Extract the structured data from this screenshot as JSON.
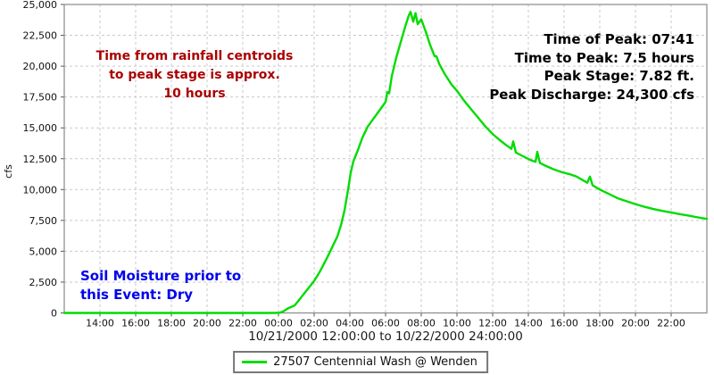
{
  "chart_data": {
    "type": "line",
    "title": "",
    "xlabel": "10/21/2000 12:00:00 to 10/22/2000 24:00:00",
    "ylabel": "cfs",
    "ylim": [
      0,
      25000
    ],
    "y_tick_step": 2500,
    "x_hours_range": [
      0,
      36
    ],
    "x_tick_start_hour": 2,
    "x_tick_step_hours": 2,
    "x_tick_labels": [
      "14:00",
      "16:00",
      "18:00",
      "20:00",
      "22:00",
      "00:00",
      "02:00",
      "04:00",
      "06:00",
      "08:00",
      "10:00",
      "12:00",
      "14:00",
      "16:00",
      "18:00",
      "20:00",
      "22:00"
    ],
    "grid": true,
    "legend_position": "bottom",
    "colors": {
      "grid": "#c9c9c9",
      "axis_border": "#888888",
      "tick": "#555555",
      "tick_label": "#111111"
    },
    "series": [
      {
        "name": "27507 Centennial Wash @ Wenden",
        "color": "#00dc00",
        "points_hours_cfs": [
          [
            0,
            0
          ],
          [
            1,
            0
          ],
          [
            2,
            0
          ],
          [
            3,
            0
          ],
          [
            4,
            0
          ],
          [
            5,
            0
          ],
          [
            6,
            0
          ],
          [
            7,
            0
          ],
          [
            8,
            0
          ],
          [
            9,
            0
          ],
          [
            10,
            0
          ],
          [
            11,
            0
          ],
          [
            11.8,
            0
          ],
          [
            12.1,
            30
          ],
          [
            12.3,
            150
          ],
          [
            12.5,
            350
          ],
          [
            12.7,
            480
          ],
          [
            12.9,
            600
          ],
          [
            13.1,
            950
          ],
          [
            13.4,
            1500
          ],
          [
            13.7,
            2050
          ],
          [
            14,
            2600
          ],
          [
            14.3,
            3300
          ],
          [
            14.7,
            4400
          ],
          [
            15,
            5300
          ],
          [
            15.3,
            6200
          ],
          [
            15.5,
            7100
          ],
          [
            15.7,
            8300
          ],
          [
            15.9,
            10000
          ],
          [
            16.05,
            11400
          ],
          [
            16.2,
            12300
          ],
          [
            16.45,
            13200
          ],
          [
            16.7,
            14200
          ],
          [
            17,
            15100
          ],
          [
            17.4,
            15900
          ],
          [
            17.7,
            16500
          ],
          [
            18,
            17100
          ],
          [
            18.1,
            17900
          ],
          [
            18.2,
            17800
          ],
          [
            18.35,
            19200
          ],
          [
            18.6,
            20700
          ],
          [
            18.9,
            22200
          ],
          [
            19.1,
            23200
          ],
          [
            19.3,
            24100
          ],
          [
            19.4,
            24400
          ],
          [
            19.55,
            23600
          ],
          [
            19.68,
            24300
          ],
          [
            19.8,
            23400
          ],
          [
            20,
            23800
          ],
          [
            20.1,
            23400
          ],
          [
            20.3,
            22600
          ],
          [
            20.5,
            21700
          ],
          [
            20.75,
            20800
          ],
          [
            20.85,
            20800
          ],
          [
            21,
            20200
          ],
          [
            21.3,
            19400
          ],
          [
            21.7,
            18500
          ],
          [
            22,
            18000
          ],
          [
            22.4,
            17200
          ],
          [
            22.8,
            16500
          ],
          [
            23.2,
            15800
          ],
          [
            23.6,
            15100
          ],
          [
            24,
            14500
          ],
          [
            24.4,
            14000
          ],
          [
            24.8,
            13550
          ],
          [
            25.05,
            13300
          ],
          [
            25.15,
            13900
          ],
          [
            25.3,
            13000
          ],
          [
            25.7,
            12700
          ],
          [
            26.1,
            12400
          ],
          [
            26.4,
            12250
          ],
          [
            26.5,
            13050
          ],
          [
            26.65,
            12150
          ],
          [
            27,
            11900
          ],
          [
            27.4,
            11650
          ],
          [
            27.9,
            11400
          ],
          [
            28.3,
            11250
          ],
          [
            28.7,
            11050
          ],
          [
            29,
            10800
          ],
          [
            29.3,
            10550
          ],
          [
            29.45,
            11050
          ],
          [
            29.6,
            10350
          ],
          [
            30,
            10000
          ],
          [
            30.5,
            9650
          ],
          [
            31,
            9300
          ],
          [
            31.5,
            9050
          ],
          [
            32,
            8820
          ],
          [
            32.5,
            8600
          ],
          [
            33,
            8420
          ],
          [
            33.5,
            8270
          ],
          [
            34,
            8150
          ],
          [
            34.5,
            8000
          ],
          [
            35,
            7880
          ],
          [
            35.5,
            7740
          ],
          [
            36,
            7620
          ]
        ]
      }
    ],
    "annotations": [
      {
        "id": "rainfall-centroids",
        "text": "Time from rainfall centroids\nto peak stage is approx.\n10 hours",
        "color": "#aa0000"
      },
      {
        "id": "peak-stats",
        "text": "Time of Peak: 07:41\nTime to Peak: 7.5 hours\nPeak Stage: 7.82 ft.\nPeak Discharge: 24,300 cfs",
        "color": "#000000"
      },
      {
        "id": "soil-moisture",
        "text": "Soil Moisture prior to\nthis Event: Dry",
        "color": "#0000ee"
      }
    ]
  },
  "legend": {
    "series_label": "27507 Centennial Wash @ Wenden",
    "swatch_color": "#00dc00"
  }
}
